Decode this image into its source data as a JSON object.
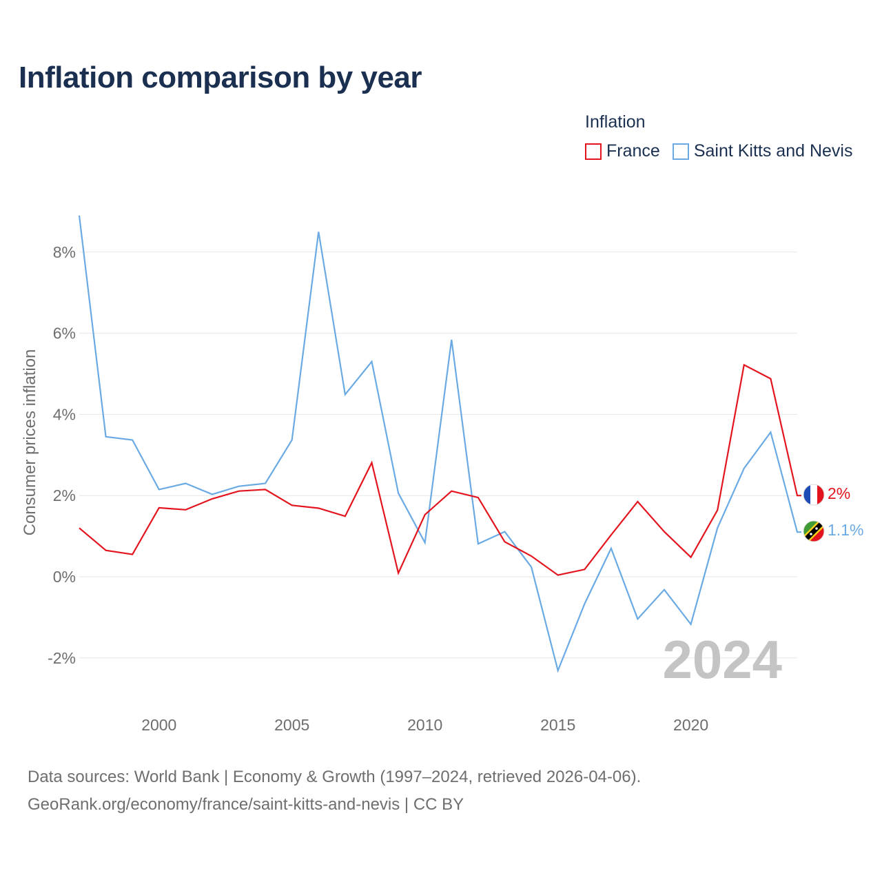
{
  "title": "Inflation comparison by year",
  "legend": {
    "title": "Inflation",
    "items": [
      {
        "label": "France",
        "color": "#e3141e"
      },
      {
        "label": "Saint Kitts and Nevis",
        "color": "#6aaae4"
      }
    ]
  },
  "footer": {
    "line1": "Data sources: World Bank | Economy & Growth (1997–2024, retrieved 2026-04-06).",
    "line2": "GeoRank.org/economy/france/saint-kitts-and-nevis | CC BY"
  },
  "chart_data": {
    "type": "line",
    "title": "Inflation comparison by year",
    "xlabel": "",
    "ylabel": "Consumer prices inflation",
    "xlim": [
      1997,
      2024
    ],
    "ylim": [
      -3,
      9
    ],
    "grid": true,
    "x_ticks": [
      2000,
      2005,
      2010,
      2015,
      2020
    ],
    "y_ticks": [
      -2,
      0,
      2,
      4,
      6,
      8
    ],
    "y_tick_labels": [
      "-2%",
      "0%",
      "2%",
      "4%",
      "6%",
      "8%"
    ],
    "highlight_year": "2024",
    "x": [
      1997,
      1998,
      1999,
      2000,
      2001,
      2002,
      2003,
      2004,
      2005,
      2006,
      2007,
      2008,
      2009,
      2010,
      2011,
      2012,
      2013,
      2014,
      2015,
      2016,
      2017,
      2018,
      2019,
      2020,
      2021,
      2022,
      2023,
      2024
    ],
    "series": [
      {
        "name": "France",
        "color": "#e3141e",
        "end_label": "2%",
        "values": [
          1.2,
          0.65,
          0.55,
          1.7,
          1.65,
          1.92,
          2.11,
          2.15,
          1.76,
          1.69,
          1.49,
          2.81,
          0.09,
          1.53,
          2.11,
          1.95,
          0.86,
          0.51,
          0.04,
          0.18,
          1.03,
          1.85,
          1.11,
          0.48,
          1.64,
          5.22,
          4.88,
          2.0
        ]
      },
      {
        "name": "Saint Kitts and Nevis",
        "color": "#6aaae4",
        "end_label": "1.1%",
        "values": [
          8.9,
          3.45,
          3.37,
          2.15,
          2.3,
          2.03,
          2.23,
          2.3,
          3.37,
          8.5,
          4.49,
          5.3,
          2.06,
          0.84,
          5.84,
          0.81,
          1.11,
          0.24,
          -2.31,
          -0.67,
          0.7,
          -1.04,
          -0.32,
          -1.17,
          1.2,
          2.67,
          3.56,
          1.1
        ]
      }
    ]
  }
}
